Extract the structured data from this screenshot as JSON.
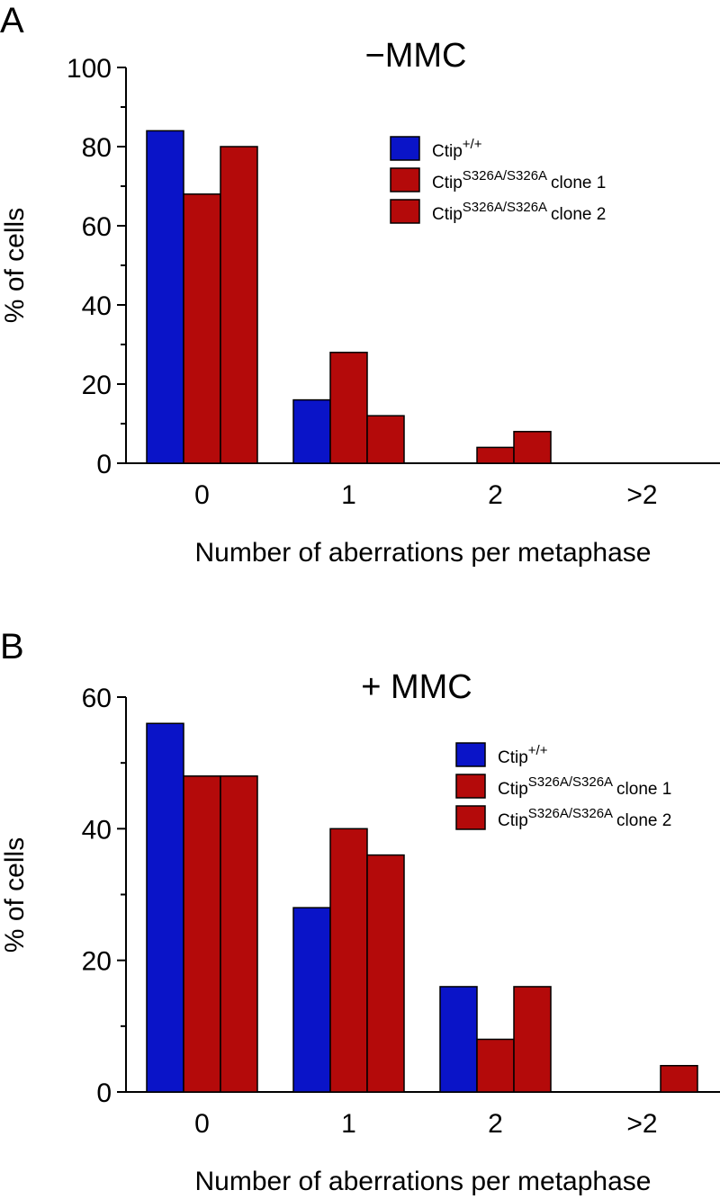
{
  "chart_data": [
    {
      "type": "bar",
      "panel": "A",
      "title": "−MMC",
      "xlabel": "Number of aberrations per metaphase",
      "ylabel": "% of cells",
      "categories": [
        "0",
        "1",
        "2",
        ">2"
      ],
      "ylim": [
        0,
        100
      ],
      "yticks": [
        0,
        20,
        40,
        60,
        80,
        100
      ],
      "series": [
        {
          "name": "Ctip",
          "sup": "+/+",
          "suffix": "",
          "color": "#0a14c8",
          "values": [
            84,
            16,
            0,
            0
          ]
        },
        {
          "name": "Ctip",
          "sup": "S326A/S326A",
          "suffix": "clone 1",
          "color": "#b40a0a",
          "values": [
            68,
            28,
            4,
            0
          ]
        },
        {
          "name": "Ctip",
          "sup": "S326A/S326A",
          "suffix": "clone 2",
          "color": "#b40a0a",
          "values": [
            80,
            12,
            8,
            0
          ]
        }
      ],
      "legend_position": "top-right"
    },
    {
      "type": "bar",
      "panel": "B",
      "title": "+ MMC",
      "xlabel": "Number of aberrations per metaphase",
      "ylabel": "% of cells",
      "categories": [
        "0",
        "1",
        "2",
        ">2"
      ],
      "ylim": [
        0,
        60
      ],
      "yticks": [
        0,
        20,
        40,
        60
      ],
      "series": [
        {
          "name": "Ctip",
          "sup": "+/+",
          "suffix": "",
          "color": "#0a14c8",
          "values": [
            56,
            28,
            16,
            0
          ]
        },
        {
          "name": "Ctip",
          "sup": "S326A/S326A",
          "suffix": "clone 1",
          "color": "#b40a0a",
          "values": [
            48,
            40,
            8,
            0
          ]
        },
        {
          "name": "Ctip",
          "sup": "S326A/S326A",
          "suffix": "clone 2",
          "color": "#b40a0a",
          "values": [
            48,
            36,
            16,
            4
          ]
        }
      ],
      "legend_position": "top-right"
    }
  ]
}
